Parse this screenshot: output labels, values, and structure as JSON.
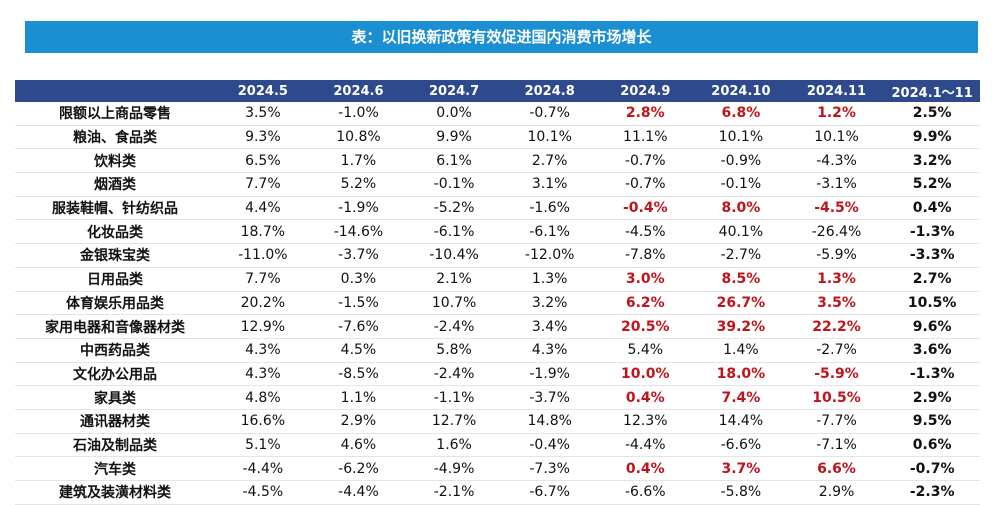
{
  "title": "表：以旧换新政策有效促进国内消费市场增长",
  "table": {
    "header": [
      "",
      "2024.5",
      "2024.6",
      "2024.7",
      "2024.8",
      "2024.9",
      "2024.10",
      "2024.11",
      "2024.1～11"
    ],
    "highlight_columns": [
      5,
      6,
      7
    ],
    "rows": [
      {
        "name": "限额以上商品零售",
        "values": [
          "3.5%",
          "-1.0%",
          "0.0%",
          "-0.7%",
          "2.8%",
          "6.8%",
          "1.2%",
          "2.5%"
        ],
        "highlight": true
      },
      {
        "name": "粮油、食品类",
        "values": [
          "9.3%",
          "10.8%",
          "9.9%",
          "10.1%",
          "11.1%",
          "10.1%",
          "10.1%",
          "9.9%"
        ],
        "highlight": false
      },
      {
        "name": "饮料类",
        "values": [
          "6.5%",
          "1.7%",
          "6.1%",
          "2.7%",
          "-0.7%",
          "-0.9%",
          "-4.3%",
          "3.2%"
        ],
        "highlight": false
      },
      {
        "name": "烟酒类",
        "values": [
          "7.7%",
          "5.2%",
          "-0.1%",
          "3.1%",
          "-0.7%",
          "-0.1%",
          "-3.1%",
          "5.2%"
        ],
        "highlight": false
      },
      {
        "name": "服装鞋帽、针纺织品",
        "values": [
          "4.4%",
          "-1.9%",
          "-5.2%",
          "-1.6%",
          "-0.4%",
          "8.0%",
          "-4.5%",
          "0.4%"
        ],
        "highlight": true
      },
      {
        "name": "化妆品类",
        "values": [
          "18.7%",
          "-14.6%",
          "-6.1%",
          "-6.1%",
          "-4.5%",
          "40.1%",
          "-26.4%",
          "-1.3%"
        ],
        "highlight": false
      },
      {
        "name": "金银珠宝类",
        "values": [
          "-11.0%",
          "-3.7%",
          "-10.4%",
          "-12.0%",
          "-7.8%",
          "-2.7%",
          "-5.9%",
          "-3.3%"
        ],
        "highlight": false
      },
      {
        "name": "日用品类",
        "values": [
          "7.7%",
          "0.3%",
          "2.1%",
          "1.3%",
          "3.0%",
          "8.5%",
          "1.3%",
          "2.7%"
        ],
        "highlight": true
      },
      {
        "name": "体育娱乐用品类",
        "values": [
          "20.2%",
          "-1.5%",
          "10.7%",
          "3.2%",
          "6.2%",
          "26.7%",
          "3.5%",
          "10.5%"
        ],
        "highlight": true
      },
      {
        "name": "家用电器和音像器材类",
        "values": [
          "12.9%",
          "-7.6%",
          "-2.4%",
          "3.4%",
          "20.5%",
          "39.2%",
          "22.2%",
          "9.6%"
        ],
        "highlight": true
      },
      {
        "name": "中西药品类",
        "values": [
          "4.3%",
          "4.5%",
          "5.8%",
          "4.3%",
          "5.4%",
          "1.4%",
          "-2.7%",
          "3.6%"
        ],
        "highlight": false
      },
      {
        "name": "文化办公用品",
        "values": [
          "4.3%",
          "-8.5%",
          "-2.4%",
          "-1.9%",
          "10.0%",
          "18.0%",
          "-5.9%",
          "-1.3%"
        ],
        "highlight": true
      },
      {
        "name": "家具类",
        "values": [
          "4.8%",
          "1.1%",
          "-1.1%",
          "-3.7%",
          "0.4%",
          "7.4%",
          "10.5%",
          "2.9%"
        ],
        "highlight": true
      },
      {
        "name": "通讯器材类",
        "values": [
          "16.6%",
          "2.9%",
          "12.7%",
          "14.8%",
          "12.3%",
          "14.4%",
          "-7.7%",
          "9.5%"
        ],
        "highlight": false
      },
      {
        "name": "石油及制品类",
        "values": [
          "5.1%",
          "4.6%",
          "1.6%",
          "-0.4%",
          "-4.4%",
          "-6.6%",
          "-7.1%",
          "0.6%"
        ],
        "highlight": false
      },
      {
        "name": "汽车类",
        "values": [
          "-4.4%",
          "-6.2%",
          "-4.9%",
          "-7.3%",
          "0.4%",
          "3.7%",
          "6.6%",
          "-0.7%"
        ],
        "highlight": true
      },
      {
        "name": "建筑及装潢材料类",
        "values": [
          "-4.5%",
          "-4.4%",
          "-2.1%",
          "-6.7%",
          "-6.6%",
          "-5.8%",
          "2.9%",
          "-2.3%"
        ],
        "highlight": false
      }
    ]
  }
}
